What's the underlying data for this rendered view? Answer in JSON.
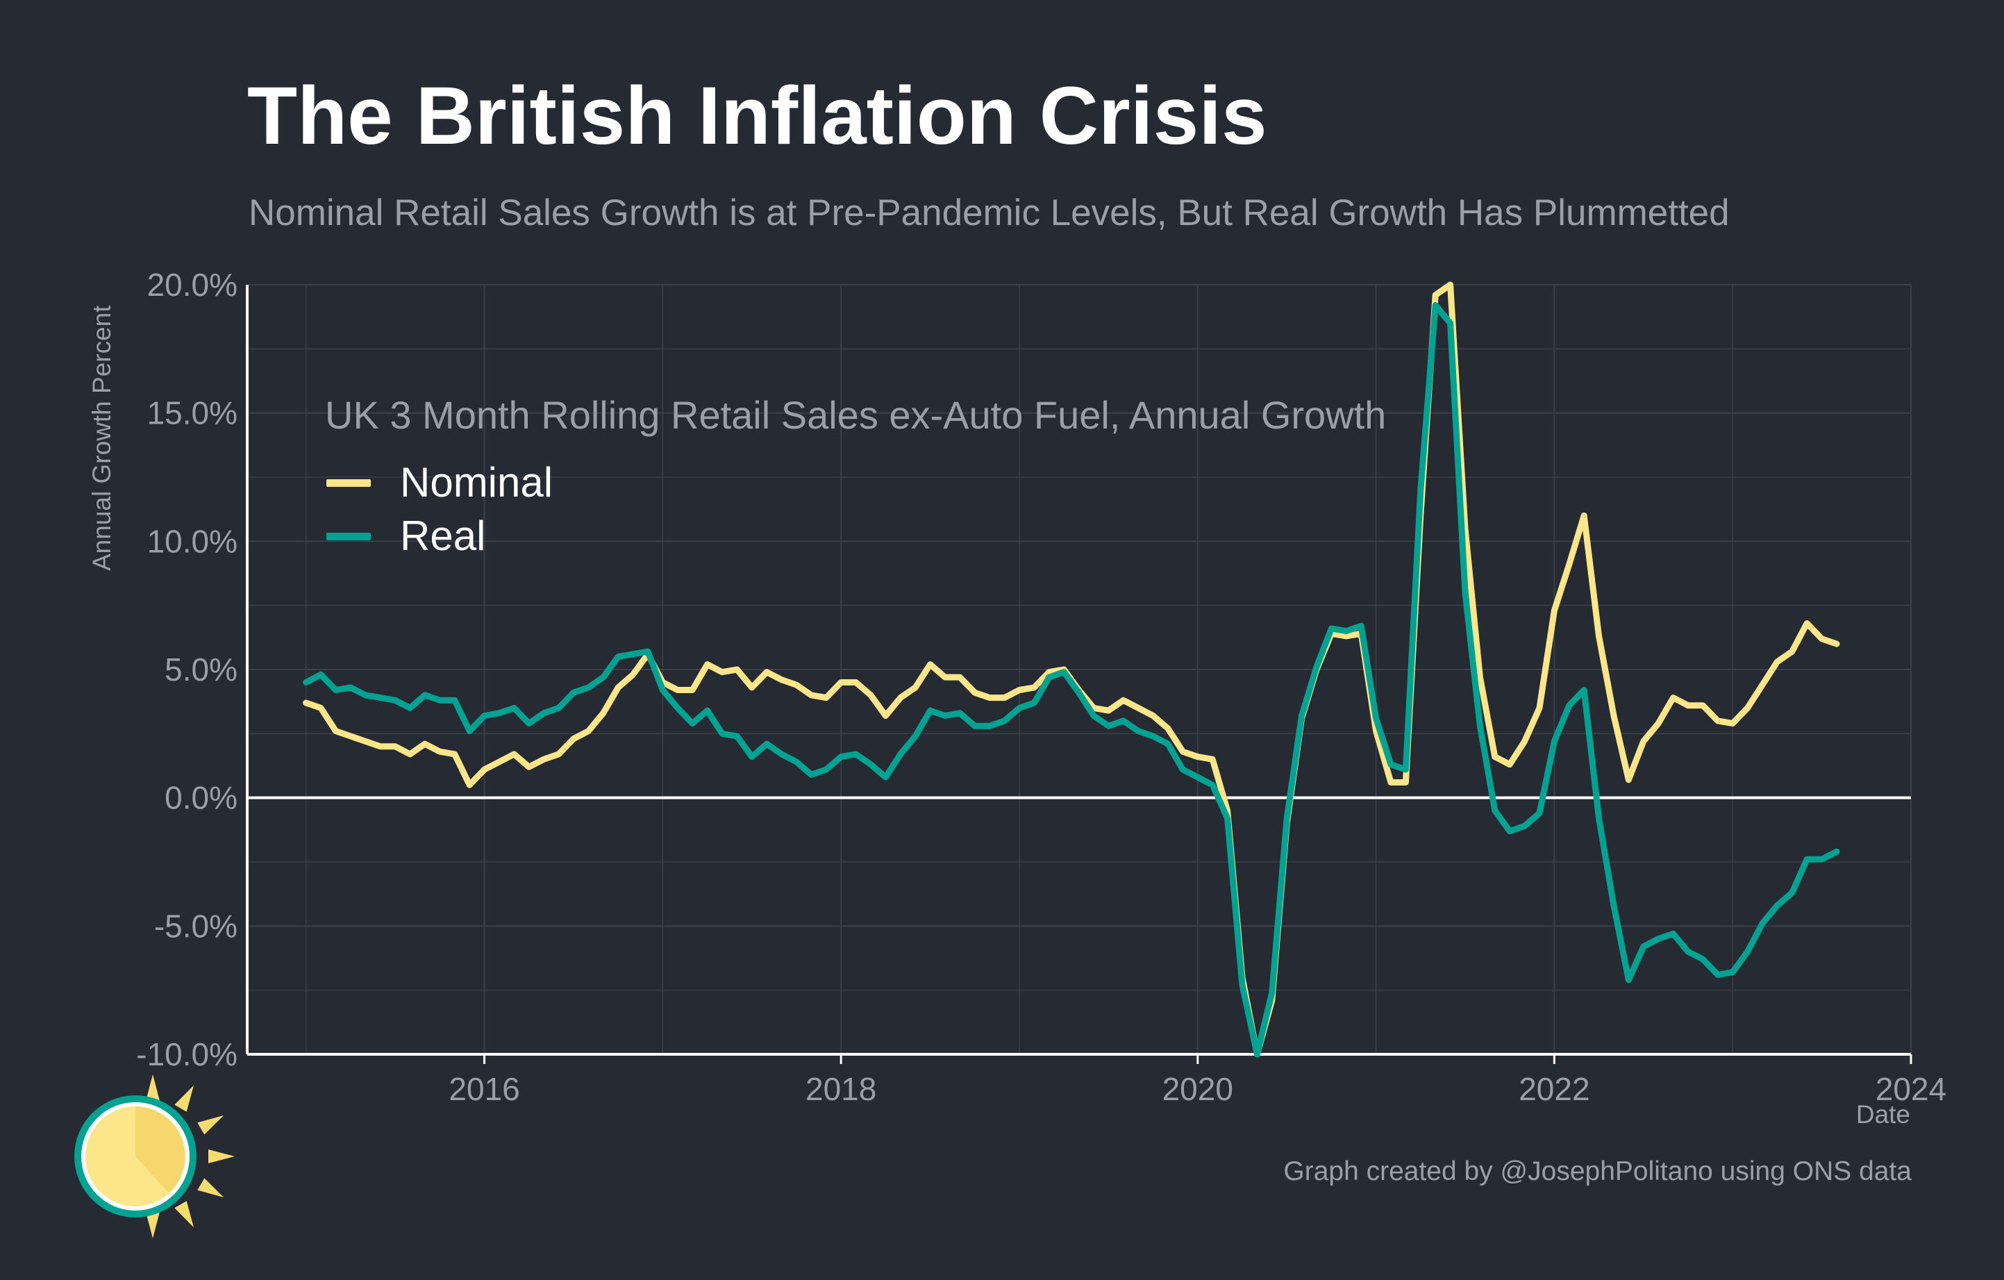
{
  "title": "The British Inflation Crisis",
  "subtitle": "Nominal Retail Sales Growth is at Pre-Pandemic Levels, But Real Growth Has Plummetted",
  "credit": "Graph created by @JosephPolitano using ONS data",
  "colors": {
    "background": "#252a33",
    "nominal": "#fde68a",
    "real": "#00a391",
    "grid": "#3a404a",
    "axis": "#ffffff",
    "text_muted": "#9aa0a8"
  },
  "legend": {
    "title": "UK 3 Month Rolling Retail Sales ex-Auto Fuel, Annual Growth",
    "items": [
      {
        "label": "Nominal",
        "color": "#fde68a"
      },
      {
        "label": "Real",
        "color": "#00a391"
      }
    ]
  },
  "logo_icon": "sun-icon",
  "chart_data": {
    "type": "line",
    "title": "The British Inflation Crisis",
    "subtitle": "Nominal Retail Sales Growth is at Pre-Pandemic Levels, But Real Growth Has Plummetted",
    "xlabel": "Date",
    "ylabel": "Annual Growth Percent",
    "x_start": "2015-01",
    "x_frequency": "monthly",
    "xlim": [
      2014.67,
      2024.0
    ],
    "ylim": [
      -10,
      20
    ],
    "x_ticks": [
      2016,
      2018,
      2020,
      2022,
      2024
    ],
    "x_tick_labels": [
      "2016",
      "2018",
      "2020",
      "2022",
      "2024"
    ],
    "y_ticks": [
      -10,
      -5,
      0,
      5,
      10,
      15,
      20
    ],
    "y_tick_labels": [
      "-10.0%",
      "-5.0%",
      "0.0%",
      "5.0%",
      "10.0%",
      "15.0%",
      "20.0%"
    ],
    "grid": true,
    "legend_position": "top-left",
    "series": [
      {
        "name": "Nominal",
        "color": "#fde68a",
        "values": [
          3.7,
          3.5,
          2.6,
          2.4,
          2.2,
          2.0,
          2.0,
          1.7,
          2.1,
          1.8,
          1.7,
          0.5,
          1.1,
          1.4,
          1.7,
          1.2,
          1.5,
          1.7,
          2.3,
          2.6,
          3.3,
          4.3,
          4.8,
          5.6,
          4.5,
          4.2,
          4.2,
          5.2,
          4.9,
          5.0,
          4.3,
          4.9,
          4.6,
          4.4,
          4.0,
          3.9,
          4.5,
          4.5,
          4.0,
          3.2,
          3.9,
          4.3,
          5.2,
          4.7,
          4.7,
          4.1,
          3.9,
          3.9,
          4.2,
          4.3,
          4.9,
          5.0,
          4.2,
          3.5,
          3.4,
          3.8,
          3.5,
          3.2,
          2.7,
          1.8,
          1.6,
          1.5,
          -0.5,
          -7.0,
          -10.0,
          -7.9,
          -1.0,
          3.1,
          5.0,
          6.4,
          6.3,
          6.4,
          2.6,
          0.6,
          0.6,
          11.0,
          19.6,
          20.0,
          10.5,
          4.7,
          1.6,
          1.3,
          2.2,
          3.5,
          7.3,
          9.1,
          11.0,
          6.3,
          3.2,
          0.7,
          2.2,
          2.9,
          3.9,
          3.6,
          3.6,
          3.0,
          2.9,
          3.5,
          4.4,
          5.3,
          5.7,
          6.8,
          6.2,
          6.0
        ]
      },
      {
        "name": "Real",
        "color": "#00a391",
        "values": [
          4.5,
          4.8,
          4.2,
          4.3,
          4.0,
          3.9,
          3.8,
          3.5,
          4.0,
          3.8,
          3.8,
          2.6,
          3.2,
          3.3,
          3.5,
          2.9,
          3.3,
          3.5,
          4.1,
          4.3,
          4.7,
          5.5,
          5.6,
          5.7,
          4.2,
          3.5,
          2.9,
          3.4,
          2.5,
          2.4,
          1.6,
          2.1,
          1.7,
          1.4,
          0.9,
          1.1,
          1.6,
          1.7,
          1.3,
          0.8,
          1.7,
          2.4,
          3.4,
          3.2,
          3.3,
          2.8,
          2.8,
          3.0,
          3.5,
          3.7,
          4.7,
          4.9,
          4.1,
          3.2,
          2.8,
          3.0,
          2.6,
          2.4,
          2.1,
          1.1,
          0.8,
          0.5,
          -0.8,
          -7.3,
          -10.0,
          -7.6,
          -0.8,
          3.2,
          5.1,
          6.6,
          6.5,
          6.7,
          3.1,
          1.3,
          1.1,
          12.0,
          19.2,
          18.5,
          8.0,
          2.8,
          -0.5,
          -1.3,
          -1.1,
          -0.6,
          2.2,
          3.6,
          4.2,
          -0.8,
          -4.2,
          -7.1,
          -5.8,
          -5.5,
          -5.3,
          -6.0,
          -6.3,
          -6.9,
          -6.8,
          -6.0,
          -4.9,
          -4.2,
          -3.7,
          -2.4,
          -2.4,
          -2.1
        ]
      }
    ]
  }
}
